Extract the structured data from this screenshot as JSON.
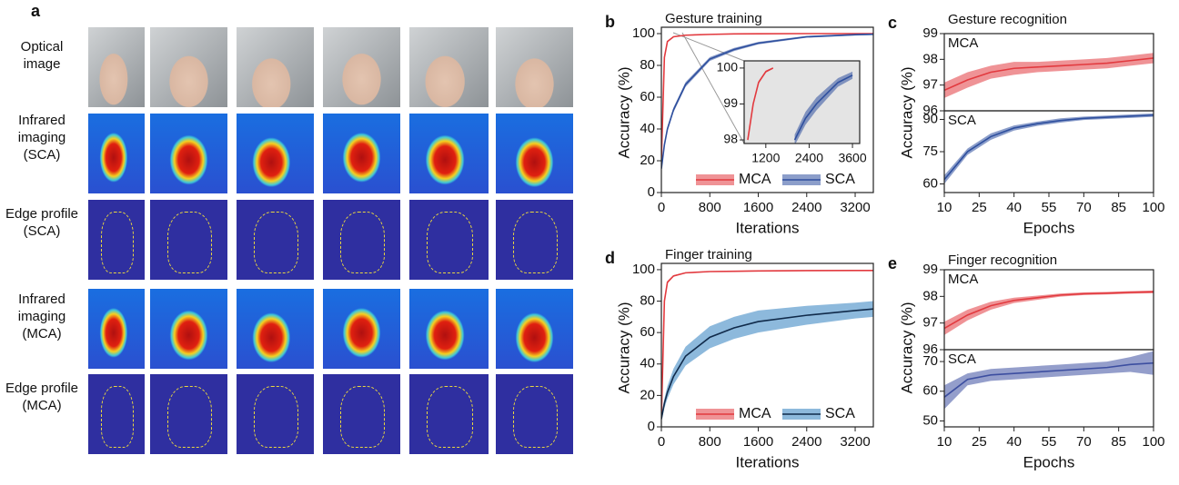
{
  "panel_a": {
    "letter": "a",
    "rows": [
      {
        "label": "Optical image"
      },
      {
        "label": "Infrared imaging (SCA)"
      },
      {
        "label": "Edge profile (SCA)"
      },
      {
        "label": "Infrared imaging (MCA)"
      },
      {
        "label": "Edge profile (MCA)"
      }
    ]
  },
  "chart_data": [
    {
      "type": "line",
      "panel": "b",
      "title": "Gesture training",
      "xlabel": "Iterations",
      "ylabel": "Accuracy (%)",
      "xlim": [
        0,
        3500
      ],
      "ylim": [
        0,
        104
      ],
      "xticks": [
        0,
        800,
        1600,
        2400,
        3200
      ],
      "yticks": [
        0,
        20,
        40,
        60,
        80,
        100
      ],
      "legend": "lower right",
      "series": [
        {
          "name": "MCA",
          "color": "#e23a3f",
          "x": [
            0,
            50,
            100,
            200,
            400,
            800,
            1200,
            1600,
            2400,
            3200,
            3500
          ],
          "values": [
            20,
            85,
            95,
            98,
            99,
            99.5,
            99.8,
            99.9,
            100,
            100,
            100
          ],
          "errors": [
            1,
            1,
            0.5,
            0.3,
            0.2,
            0.2,
            0.1,
            0.1,
            0.1,
            0.1,
            0.1
          ]
        },
        {
          "name": "SCA",
          "color": "#2e4f9e",
          "x": [
            0,
            50,
            100,
            200,
            400,
            800,
            1200,
            1600,
            2400,
            3200,
            3500
          ],
          "values": [
            15,
            30,
            40,
            52,
            68,
            84,
            90,
            94,
            98,
            99.3,
            99.6
          ],
          "errors": [
            1,
            1.5,
            1.5,
            1.5,
            1.5,
            1.2,
            1,
            0.8,
            0.6,
            0.5,
            0.5
          ]
        }
      ]
    },
    {
      "type": "line",
      "background": "#e4e4e4",
      "xlim": [
        600,
        3800
      ],
      "ylim": [
        97.9,
        100.2
      ],
      "xticks": [
        1200,
        2400,
        3600
      ],
      "yticks": [
        98,
        99,
        100
      ],
      "series": [
        {
          "color": "#e23a3f",
          "x": [
            700,
            850,
            1000,
            1200,
            1400
          ],
          "values": [
            98,
            99,
            99.6,
            99.9,
            100
          ],
          "errors": [
            0.05,
            0.05,
            0.04,
            0.03,
            0.02
          ]
        },
        {
          "color": "#2e4f9e",
          "x": [
            2000,
            2300,
            2600,
            2900,
            3200,
            3600
          ],
          "values": [
            98,
            98.6,
            99,
            99.3,
            99.6,
            99.8
          ],
          "errors": [
            0.15,
            0.18,
            0.18,
            0.15,
            0.12,
            0.1
          ]
        }
      ]
    },
    {
      "type": "line",
      "panel": "c",
      "title": "Gesture recognition",
      "label": "MCA",
      "ylabel": "Accuracy (%)",
      "xlim": [
        10,
        100
      ],
      "ylim": [
        96,
        99
      ],
      "yticks": [
        96,
        97,
        98,
        99
      ],
      "series": [
        {
          "color": "#e23a3f",
          "x": [
            10,
            20,
            30,
            40,
            50,
            60,
            70,
            80,
            90,
            100
          ],
          "values": [
            96.8,
            97.2,
            97.5,
            97.65,
            97.7,
            97.75,
            97.8,
            97.85,
            97.95,
            98.05
          ],
          "errors": [
            0.3,
            0.3,
            0.25,
            0.25,
            0.2,
            0.2,
            0.2,
            0.2,
            0.2,
            0.2
          ]
        }
      ]
    },
    {
      "type": "line",
      "label": "SCA",
      "xlabel": "Epochs",
      "xlim": [
        10,
        100
      ],
      "ylim": [
        56,
        94
      ],
      "xticks": [
        10,
        25,
        40,
        55,
        70,
        85,
        100
      ],
      "yticks": [
        60,
        75,
        90
      ],
      "series": [
        {
          "color": "#2e4f9e",
          "x": [
            10,
            20,
            30,
            40,
            50,
            60,
            70,
            80,
            90,
            100
          ],
          "values": [
            62,
            75,
            82,
            86,
            88,
            89.5,
            90.5,
            91,
            91.5,
            92
          ],
          "errors": [
            2,
            1.5,
            1.5,
            1.2,
            1,
            1,
            0.8,
            0.8,
            0.8,
            0.8
          ]
        }
      ]
    },
    {
      "type": "line",
      "panel": "d",
      "title": "Finger training",
      "xlabel": "Iterations",
      "ylabel": "Accuracy (%)",
      "xlim": [
        0,
        3500
      ],
      "ylim": [
        0,
        104
      ],
      "xticks": [
        0,
        800,
        1600,
        2400,
        3200
      ],
      "yticks": [
        0,
        20,
        40,
        60,
        80,
        100
      ],
      "legend": "lower right",
      "series": [
        {
          "name": "MCA",
          "color": "#e23a3f",
          "x": [
            0,
            50,
            100,
            200,
            400,
            800,
            1200,
            1600,
            2400,
            3200,
            3500
          ],
          "values": [
            5,
            80,
            92,
            96,
            98,
            98.8,
            99,
            99.2,
            99.4,
            99.5,
            99.5
          ],
          "errors": [
            1,
            1,
            0.8,
            0.5,
            0.3,
            0.3,
            0.3,
            0.3,
            0.3,
            0.3,
            0.3
          ]
        },
        {
          "name": "SCA",
          "color": "#2f7fbf",
          "x": [
            0,
            50,
            100,
            200,
            400,
            800,
            1200,
            1600,
            2400,
            3200,
            3500
          ],
          "values": [
            5,
            15,
            22,
            32,
            45,
            57,
            63,
            67,
            71,
            74,
            75
          ],
          "errors": [
            2,
            3,
            4,
            5,
            6,
            7,
            7,
            7,
            6,
            5,
            5
          ]
        }
      ]
    },
    {
      "type": "line",
      "panel": "e",
      "title": "Finger recognition",
      "label": "MCA",
      "ylabel": "Accuracy (%)",
      "xlim": [
        10,
        100
      ],
      "ylim": [
        96,
        99
      ],
      "yticks": [
        96,
        97,
        98,
        99
      ],
      "series": [
        {
          "color": "#e23a3f",
          "x": [
            10,
            20,
            30,
            40,
            50,
            60,
            70,
            80,
            90,
            100
          ],
          "values": [
            96.8,
            97.3,
            97.65,
            97.85,
            97.95,
            98.05,
            98.1,
            98.12,
            98.15,
            98.17
          ],
          "errors": [
            0.25,
            0.2,
            0.15,
            0.1,
            0.08,
            0.06,
            0.05,
            0.05,
            0.05,
            0.05
          ]
        }
      ]
    },
    {
      "type": "line",
      "label": "SCA",
      "xlabel": "Epochs",
      "xlim": [
        10,
        100
      ],
      "ylim": [
        48,
        74
      ],
      "xticks": [
        10,
        25,
        40,
        55,
        70,
        85,
        100
      ],
      "yticks": [
        50,
        60,
        70
      ],
      "series": [
        {
          "color": "#3c4ea0",
          "x": [
            10,
            20,
            30,
            40,
            50,
            60,
            70,
            80,
            90,
            100
          ],
          "values": [
            58,
            64,
            65.5,
            66,
            66.5,
            67,
            67.5,
            68,
            69,
            69.5
          ],
          "errors": [
            4,
            2,
            2,
            2,
            2,
            2,
            2,
            2,
            2.5,
            4
          ]
        }
      ]
    }
  ]
}
